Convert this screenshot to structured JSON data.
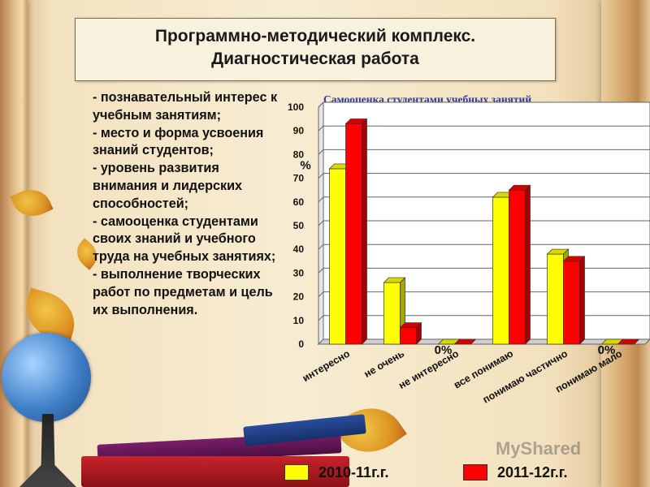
{
  "title": {
    "line1": "Программно-методический комплекс.",
    "line2": "Диагностическая работа"
  },
  "left_list": [
    "- познавательный интерес к учебным занятиям;",
    "- место и форма усвоения знаний студентов;",
    "- уровень развития внимания и лидерских способностей;",
    "- самооценка студентами своих знаний и учебного труда на учебных занятиях;",
    "- выполнение творческих работ по предметам и цель их выполнения."
  ],
  "chart_data": {
    "type": "bar",
    "title": "Самооценка студентами учебных занятий",
    "ylabel": "%",
    "ylim": [
      0,
      100
    ],
    "yticks": [
      0,
      10,
      20,
      30,
      40,
      50,
      60,
      70,
      80,
      90,
      100
    ],
    "categories": [
      "интересно",
      "не очень",
      "не интересно",
      "все понимаю",
      "понимаю частично",
      "понимаю мало"
    ],
    "series": [
      {
        "name": "2010-11г.г.",
        "color": "#ffff00",
        "values": [
          74,
          26,
          0,
          62,
          38,
          0
        ]
      },
      {
        "name": "2011-12г.г.",
        "color": "#ff0000",
        "values": [
          93,
          7,
          0,
          65,
          35,
          0
        ]
      }
    ],
    "annotations": [
      "0%",
      "0%"
    ],
    "grid": true
  },
  "watermark": "MyShared"
}
